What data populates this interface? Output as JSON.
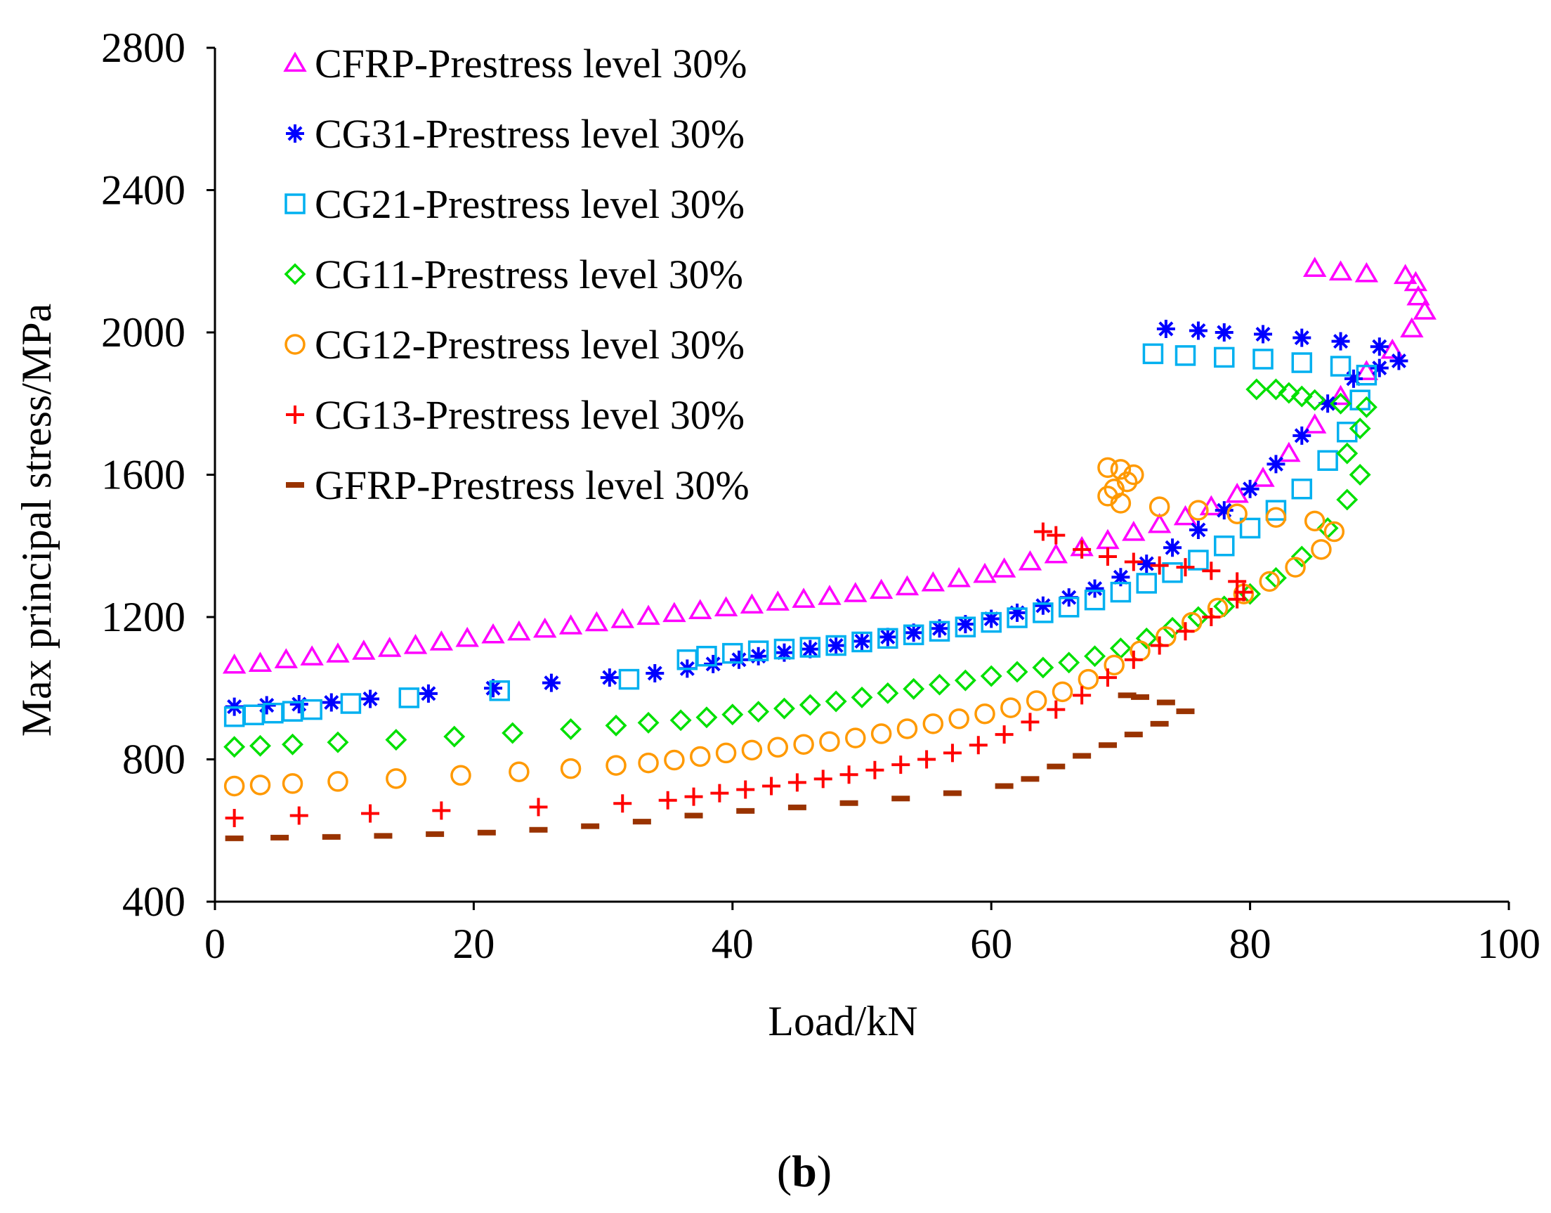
{
  "chart_data": {
    "type": "scatter",
    "xlabel": "Load/kN",
    "ylabel": "Max principal stress/MPa",
    "xlim": [
      0,
      100
    ],
    "ylim": [
      400,
      2800
    ],
    "xticks": [
      0,
      20,
      40,
      60,
      80,
      100
    ],
    "yticks": [
      400,
      800,
      1200,
      1600,
      2000,
      2400,
      2800
    ],
    "grid": false,
    "legend_position": "top-left",
    "panel_label": {
      "open": "(",
      "letter": "b",
      "close": ")"
    },
    "series": [
      {
        "name": "CFRP-Prestress level 30%",
        "marker": "triangle",
        "color": "#ff00ff",
        "points": [
          [
            1.5,
            1065
          ],
          [
            3.5,
            1070
          ],
          [
            5.5,
            1080
          ],
          [
            7.5,
            1088
          ],
          [
            9.5,
            1096
          ],
          [
            11.5,
            1104
          ],
          [
            13.5,
            1112
          ],
          [
            15.5,
            1120
          ],
          [
            17.5,
            1130
          ],
          [
            19.5,
            1140
          ],
          [
            21.5,
            1150
          ],
          [
            23.5,
            1158
          ],
          [
            25.5,
            1166
          ],
          [
            27.5,
            1175
          ],
          [
            29.5,
            1184
          ],
          [
            31.5,
            1193
          ],
          [
            33.5,
            1202
          ],
          [
            35.5,
            1210
          ],
          [
            37.5,
            1218
          ],
          [
            39.5,
            1226
          ],
          [
            41.5,
            1234
          ],
          [
            43.5,
            1242
          ],
          [
            45.5,
            1250
          ],
          [
            47.5,
            1258
          ],
          [
            49.5,
            1266
          ],
          [
            51.5,
            1275
          ],
          [
            53.5,
            1285
          ],
          [
            55.5,
            1296
          ],
          [
            57.5,
            1308
          ],
          [
            59.5,
            1320
          ],
          [
            61,
            1335
          ],
          [
            63,
            1355
          ],
          [
            65,
            1375
          ],
          [
            67,
            1395
          ],
          [
            69,
            1415
          ],
          [
            71,
            1438
          ],
          [
            73,
            1460
          ],
          [
            75,
            1482
          ],
          [
            77,
            1510
          ],
          [
            79,
            1545
          ],
          [
            81,
            1590
          ],
          [
            83,
            1660
          ],
          [
            85,
            1740
          ],
          [
            87,
            1820
          ],
          [
            89,
            1890
          ],
          [
            91,
            1950
          ],
          [
            92.5,
            2010
          ],
          [
            93.5,
            2060
          ],
          [
            93,
            2100
          ],
          [
            92.8,
            2140
          ],
          [
            92,
            2160
          ],
          [
            89,
            2165
          ],
          [
            87,
            2170
          ],
          [
            85,
            2180
          ]
        ]
      },
      {
        "name": "CG31-Prestress level 30%",
        "marker": "asterisk",
        "color": "#0000ff",
        "points": [
          [
            1.5,
            948
          ],
          [
            4,
            952
          ],
          [
            6.5,
            955
          ],
          [
            9,
            960
          ],
          [
            12,
            970
          ],
          [
            16.5,
            985
          ],
          [
            21.5,
            1000
          ],
          [
            26,
            1015
          ],
          [
            30.5,
            1030
          ],
          [
            34,
            1042
          ],
          [
            36.5,
            1055
          ],
          [
            38.5,
            1068
          ],
          [
            40.5,
            1080
          ],
          [
            42,
            1090
          ],
          [
            44,
            1100
          ],
          [
            46,
            1110
          ],
          [
            48,
            1120
          ],
          [
            50,
            1132
          ],
          [
            52,
            1144
          ],
          [
            54,
            1156
          ],
          [
            56,
            1168
          ],
          [
            58,
            1180
          ],
          [
            60,
            1195
          ],
          [
            62,
            1212
          ],
          [
            64,
            1232
          ],
          [
            66,
            1255
          ],
          [
            68,
            1280
          ],
          [
            70,
            1312
          ],
          [
            72,
            1350
          ],
          [
            74,
            1395
          ],
          [
            76,
            1445
          ],
          [
            78,
            1500
          ],
          [
            80,
            1560
          ],
          [
            82,
            1630
          ],
          [
            84,
            1710
          ],
          [
            86,
            1800
          ],
          [
            88,
            1870
          ],
          [
            90,
            1900
          ],
          [
            91.5,
            1920
          ],
          [
            90,
            1960
          ],
          [
            87,
            1975
          ],
          [
            84,
            1985
          ],
          [
            81,
            1995
          ],
          [
            78,
            2000
          ],
          [
            76,
            2005
          ],
          [
            73.5,
            2010
          ]
        ]
      },
      {
        "name": "CG21-Prestress level 30%",
        "marker": "square",
        "color": "#00b0f0",
        "points": [
          [
            1.5,
            920
          ],
          [
            3,
            925
          ],
          [
            4.5,
            930
          ],
          [
            6,
            935
          ],
          [
            7.5,
            940
          ],
          [
            10.5,
            957
          ],
          [
            15,
            973
          ],
          [
            22,
            993
          ],
          [
            32,
            1025
          ],
          [
            36.5,
            1080
          ],
          [
            38,
            1090
          ],
          [
            40,
            1098
          ],
          [
            42,
            1105
          ],
          [
            44,
            1110
          ],
          [
            46,
            1115
          ],
          [
            48,
            1120
          ],
          [
            50,
            1130
          ],
          [
            52,
            1140
          ],
          [
            54,
            1150
          ],
          [
            56,
            1160
          ],
          [
            58,
            1172
          ],
          [
            60,
            1185
          ],
          [
            62,
            1198
          ],
          [
            64,
            1212
          ],
          [
            66,
            1228
          ],
          [
            68,
            1248
          ],
          [
            70,
            1270
          ],
          [
            72,
            1295
          ],
          [
            74,
            1325
          ],
          [
            76,
            1360
          ],
          [
            78,
            1400
          ],
          [
            80,
            1450
          ],
          [
            82,
            1500
          ],
          [
            84,
            1560
          ],
          [
            86,
            1640
          ],
          [
            87.5,
            1720
          ],
          [
            88.5,
            1810
          ],
          [
            89,
            1880
          ],
          [
            87,
            1905
          ],
          [
            84,
            1915
          ],
          [
            81,
            1925
          ],
          [
            78,
            1930
          ],
          [
            75,
            1935
          ],
          [
            72.5,
            1940
          ]
        ]
      },
      {
        "name": "CG11-Prestress level 30%",
        "marker": "diamond",
        "color": "#00e000",
        "points": [
          [
            1.5,
            835
          ],
          [
            3.5,
            838
          ],
          [
            6,
            842
          ],
          [
            9.5,
            848
          ],
          [
            14,
            855
          ],
          [
            18.5,
            864
          ],
          [
            23,
            874
          ],
          [
            27.5,
            885
          ],
          [
            31,
            895
          ],
          [
            33.5,
            903
          ],
          [
            36,
            910
          ],
          [
            38,
            918
          ],
          [
            40,
            926
          ],
          [
            42,
            934
          ],
          [
            44,
            943
          ],
          [
            46,
            953
          ],
          [
            48,
            963
          ],
          [
            50,
            974
          ],
          [
            52,
            986
          ],
          [
            54,
            998
          ],
          [
            56,
            1010
          ],
          [
            58,
            1022
          ],
          [
            60,
            1034
          ],
          [
            62,
            1046
          ],
          [
            64,
            1058
          ],
          [
            66,
            1072
          ],
          [
            68,
            1090
          ],
          [
            70,
            1112
          ],
          [
            72,
            1140
          ],
          [
            74,
            1170
          ],
          [
            76,
            1200
          ],
          [
            78,
            1230
          ],
          [
            80,
            1265
          ],
          [
            82,
            1310
          ],
          [
            84,
            1370
          ],
          [
            86,
            1450
          ],
          [
            87.5,
            1530
          ],
          [
            88.5,
            1600
          ],
          [
            87.5,
            1660
          ],
          [
            88.5,
            1730
          ],
          [
            89,
            1790
          ],
          [
            87,
            1800
          ],
          [
            85,
            1810
          ],
          [
            84,
            1820
          ],
          [
            83,
            1830
          ],
          [
            82,
            1840
          ],
          [
            80.5,
            1840
          ]
        ]
      },
      {
        "name": "CG12-Prestress level 30%",
        "marker": "circle",
        "color": "#ff9900",
        "points": [
          [
            1.5,
            725
          ],
          [
            3.5,
            728
          ],
          [
            6,
            732
          ],
          [
            9.5,
            738
          ],
          [
            14,
            746
          ],
          [
            19,
            755
          ],
          [
            23.5,
            765
          ],
          [
            27.5,
            774
          ],
          [
            31,
            783
          ],
          [
            33.5,
            790
          ],
          [
            35.5,
            798
          ],
          [
            37.5,
            808
          ],
          [
            39.5,
            818
          ],
          [
            41.5,
            826
          ],
          [
            43.5,
            834
          ],
          [
            45.5,
            842
          ],
          [
            47.5,
            850
          ],
          [
            49.5,
            860
          ],
          [
            51.5,
            872
          ],
          [
            53.5,
            886
          ],
          [
            55.5,
            900
          ],
          [
            57.5,
            914
          ],
          [
            59.5,
            928
          ],
          [
            61.5,
            945
          ],
          [
            63.5,
            965
          ],
          [
            65.5,
            990
          ],
          [
            67.5,
            1025
          ],
          [
            69.5,
            1065
          ],
          [
            71.5,
            1105
          ],
          [
            73.5,
            1145
          ],
          [
            75.5,
            1185
          ],
          [
            77.5,
            1225
          ],
          [
            79.5,
            1265
          ],
          [
            81.5,
            1300
          ],
          [
            83.5,
            1340
          ],
          [
            85.5,
            1390
          ],
          [
            86.5,
            1440
          ],
          [
            85,
            1470
          ],
          [
            82,
            1480
          ],
          [
            79,
            1490
          ],
          [
            76,
            1500
          ],
          [
            73,
            1510
          ],
          [
            70,
            1520
          ],
          [
            69,
            1540
          ],
          [
            69.5,
            1560
          ],
          [
            70.5,
            1580
          ],
          [
            71,
            1600
          ],
          [
            70,
            1615
          ],
          [
            69,
            1620
          ]
        ]
      },
      {
        "name": "CG13-Prestress level 30%",
        "marker": "plus",
        "color": "#ff0000",
        "points": [
          [
            1.5,
            635
          ],
          [
            6.5,
            642
          ],
          [
            12,
            648
          ],
          [
            17.5,
            656
          ],
          [
            25,
            666
          ],
          [
            31.5,
            676
          ],
          [
            35,
            685
          ],
          [
            37,
            695
          ],
          [
            39,
            705
          ],
          [
            41,
            715
          ],
          [
            43,
            725
          ],
          [
            45,
            735
          ],
          [
            47,
            745
          ],
          [
            49,
            757
          ],
          [
            51,
            770
          ],
          [
            53,
            785
          ],
          [
            55,
            800
          ],
          [
            57,
            818
          ],
          [
            59,
            840
          ],
          [
            61,
            870
          ],
          [
            63,
            905
          ],
          [
            65,
            940
          ],
          [
            67,
            980
          ],
          [
            69,
            1030
          ],
          [
            71,
            1080
          ],
          [
            73,
            1120
          ],
          [
            75,
            1160
          ],
          [
            77,
            1200
          ],
          [
            79,
            1250
          ],
          [
            79.5,
            1270
          ],
          [
            79,
            1300
          ],
          [
            77,
            1330
          ],
          [
            75,
            1340
          ],
          [
            73,
            1345
          ],
          [
            71,
            1355
          ],
          [
            69,
            1370
          ],
          [
            67,
            1390
          ],
          [
            65,
            1430
          ],
          [
            64,
            1440
          ]
        ]
      },
      {
        "name": "GFRP-Prestress level 30%",
        "marker": "dash",
        "color": "#993300",
        "points": [
          [
            1.5,
            578
          ],
          [
            5,
            580
          ],
          [
            9,
            582
          ],
          [
            13,
            585
          ],
          [
            17,
            590
          ],
          [
            21,
            594
          ],
          [
            25,
            602
          ],
          [
            29,
            612
          ],
          [
            33,
            625
          ],
          [
            37,
            642
          ],
          [
            41,
            655
          ],
          [
            45,
            665
          ],
          [
            49,
            677
          ],
          [
            53,
            690
          ],
          [
            57,
            705
          ],
          [
            61,
            725
          ],
          [
            63,
            745
          ],
          [
            65,
            780
          ],
          [
            67,
            810
          ],
          [
            69,
            840
          ],
          [
            71,
            870
          ],
          [
            73,
            900
          ],
          [
            75,
            935
          ],
          [
            73.5,
            960
          ],
          [
            71.5,
            975
          ],
          [
            70.5,
            980
          ]
        ]
      }
    ]
  }
}
